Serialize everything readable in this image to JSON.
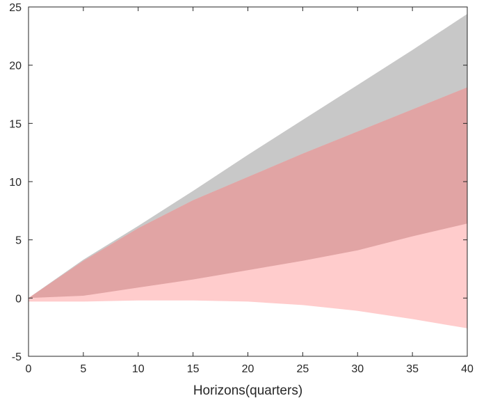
{
  "chart_data": {
    "type": "area",
    "title": "",
    "xlabel": "Horizons(quarters)",
    "ylabel": "",
    "xlim": [
      0,
      40
    ],
    "ylim": [
      -5,
      25
    ],
    "xticks": [
      0,
      5,
      10,
      15,
      20,
      25,
      30,
      35,
      40
    ],
    "yticks": [
      -5,
      0,
      5,
      10,
      15,
      20,
      25
    ],
    "grid": false,
    "legend": "none",
    "x": [
      0,
      5,
      10,
      15,
      20,
      25,
      30,
      35,
      40
    ],
    "series": [
      {
        "color": "#c8c8c8",
        "lower": [
          0.0,
          3.2,
          6.0,
          8.4,
          10.4,
          12.4,
          14.3,
          16.2,
          18.1
        ],
        "upper": [
          0.0,
          3.3,
          6.2,
          9.2,
          12.3,
          15.3,
          18.3,
          21.3,
          24.4
        ]
      },
      {
        "color": "#ff0000",
        "opacity": 0.2,
        "lower": [
          -0.3,
          -0.3,
          -0.2,
          -0.2,
          -0.3,
          -0.6,
          -1.1,
          -1.8,
          -2.6
        ],
        "upper": [
          0.0,
          3.2,
          6.0,
          8.4,
          10.4,
          12.4,
          14.3,
          16.2,
          18.1
        ]
      },
      {
        "color": "#9c4848",
        "opacity": 0.3,
        "lower": [
          0.0,
          0.2,
          0.9,
          1.6,
          2.4,
          3.2,
          4.1,
          5.3,
          6.4
        ],
        "upper": [
          0.0,
          3.2,
          6.0,
          8.4,
          10.4,
          12.4,
          14.3,
          16.2,
          18.1
        ]
      }
    ]
  }
}
